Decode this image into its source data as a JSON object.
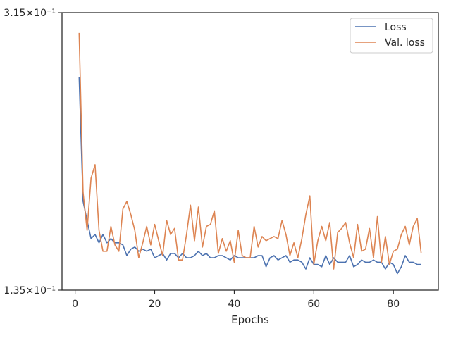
{
  "chart_data": {
    "type": "line",
    "xlabel": "Epochs",
    "ylabel": "",
    "xlim": [
      -3.3,
      91.3
    ],
    "x_ticks": [
      {
        "value": 0,
        "label": "0"
      },
      {
        "value": 20,
        "label": "20"
      },
      {
        "value": 40,
        "label": "40"
      },
      {
        "value": 60,
        "label": "60"
      },
      {
        "value": 80,
        "label": "80"
      }
    ],
    "y_scale": "log",
    "ylim": [
      0.135,
      0.315
    ],
    "y_ticks": [
      {
        "value": 0.135,
        "label": "1.35×10⁻¹"
      },
      {
        "value": 0.315,
        "label": "3.15×10⁻¹"
      }
    ],
    "grid": false,
    "legend_position": "top-right",
    "series": [
      {
        "name": "Loss",
        "color": "#4c72b0",
        "x": [
          1,
          2,
          3,
          4,
          5,
          6,
          7,
          8,
          9,
          10,
          11,
          12,
          13,
          14,
          15,
          16,
          17,
          18,
          19,
          20,
          21,
          22,
          23,
          24,
          25,
          26,
          27,
          28,
          29,
          30,
          31,
          32,
          33,
          34,
          35,
          36,
          37,
          38,
          39,
          40,
          41,
          42,
          43,
          44,
          45,
          46,
          47,
          48,
          49,
          50,
          51,
          52,
          53,
          54,
          55,
          56,
          57,
          58,
          59,
          60,
          61,
          62,
          63,
          64,
          65,
          66,
          67,
          68,
          69,
          70,
          71,
          72,
          73,
          74,
          75,
          76,
          77,
          78,
          79,
          80,
          81,
          82,
          83,
          84,
          85,
          86,
          87
        ],
        "values": [
          0.259,
          0.177,
          0.167,
          0.158,
          0.16,
          0.156,
          0.16,
          0.156,
          0.158,
          0.156,
          0.156,
          0.155,
          0.15,
          0.153,
          0.154,
          0.152,
          0.153,
          0.152,
          0.153,
          0.149,
          0.15,
          0.151,
          0.148,
          0.151,
          0.151,
          0.149,
          0.151,
          0.149,
          0.149,
          0.15,
          0.152,
          0.15,
          0.151,
          0.149,
          0.149,
          0.15,
          0.15,
          0.149,
          0.148,
          0.15,
          0.149,
          0.149,
          0.149,
          0.149,
          0.149,
          0.15,
          0.15,
          0.145,
          0.149,
          0.15,
          0.148,
          0.149,
          0.15,
          0.147,
          0.148,
          0.148,
          0.147,
          0.144,
          0.149,
          0.146,
          0.146,
          0.145,
          0.15,
          0.146,
          0.149,
          0.147,
          0.147,
          0.147,
          0.15,
          0.145,
          0.146,
          0.148,
          0.147,
          0.147,
          0.148,
          0.147,
          0.147,
          0.144,
          0.147,
          0.146,
          0.142,
          0.145,
          0.15,
          0.147,
          0.147,
          0.146,
          0.146
        ]
      },
      {
        "name": "Val. loss",
        "color": "#dd8452",
        "x": [
          1,
          2,
          3,
          4,
          5,
          6,
          7,
          8,
          9,
          10,
          11,
          12,
          13,
          14,
          15,
          16,
          17,
          18,
          19,
          20,
          21,
          22,
          23,
          24,
          25,
          26,
          27,
          28,
          29,
          30,
          31,
          32,
          33,
          34,
          35,
          36,
          37,
          38,
          39,
          40,
          41,
          42,
          43,
          44,
          45,
          46,
          47,
          48,
          49,
          50,
          51,
          52,
          53,
          54,
          55,
          56,
          57,
          58,
          59,
          60,
          61,
          62,
          63,
          64,
          65,
          66,
          67,
          68,
          69,
          70,
          71,
          72,
          73,
          74,
          75,
          76,
          77,
          78,
          79,
          80,
          81,
          82,
          83,
          84,
          85,
          86,
          87
        ],
        "values": [
          0.296,
          0.182,
          0.162,
          0.19,
          0.198,
          0.162,
          0.152,
          0.152,
          0.164,
          0.155,
          0.152,
          0.173,
          0.177,
          0.17,
          0.162,
          0.149,
          0.156,
          0.164,
          0.155,
          0.165,
          0.157,
          0.15,
          0.167,
          0.16,
          0.163,
          0.148,
          0.148,
          0.16,
          0.175,
          0.157,
          0.174,
          0.154,
          0.164,
          0.165,
          0.172,
          0.151,
          0.158,
          0.152,
          0.157,
          0.147,
          0.162,
          0.15,
          0.149,
          0.149,
          0.164,
          0.154,
          0.159,
          0.157,
          0.158,
          0.159,
          0.158,
          0.167,
          0.16,
          0.15,
          0.156,
          0.149,
          0.158,
          0.17,
          0.18,
          0.146,
          0.157,
          0.164,
          0.157,
          0.166,
          0.144,
          0.161,
          0.163,
          0.166,
          0.156,
          0.149,
          0.165,
          0.152,
          0.153,
          0.163,
          0.149,
          0.169,
          0.147,
          0.159,
          0.146,
          0.152,
          0.153,
          0.16,
          0.164,
          0.155,
          0.164,
          0.168,
          0.151
        ]
      }
    ]
  }
}
